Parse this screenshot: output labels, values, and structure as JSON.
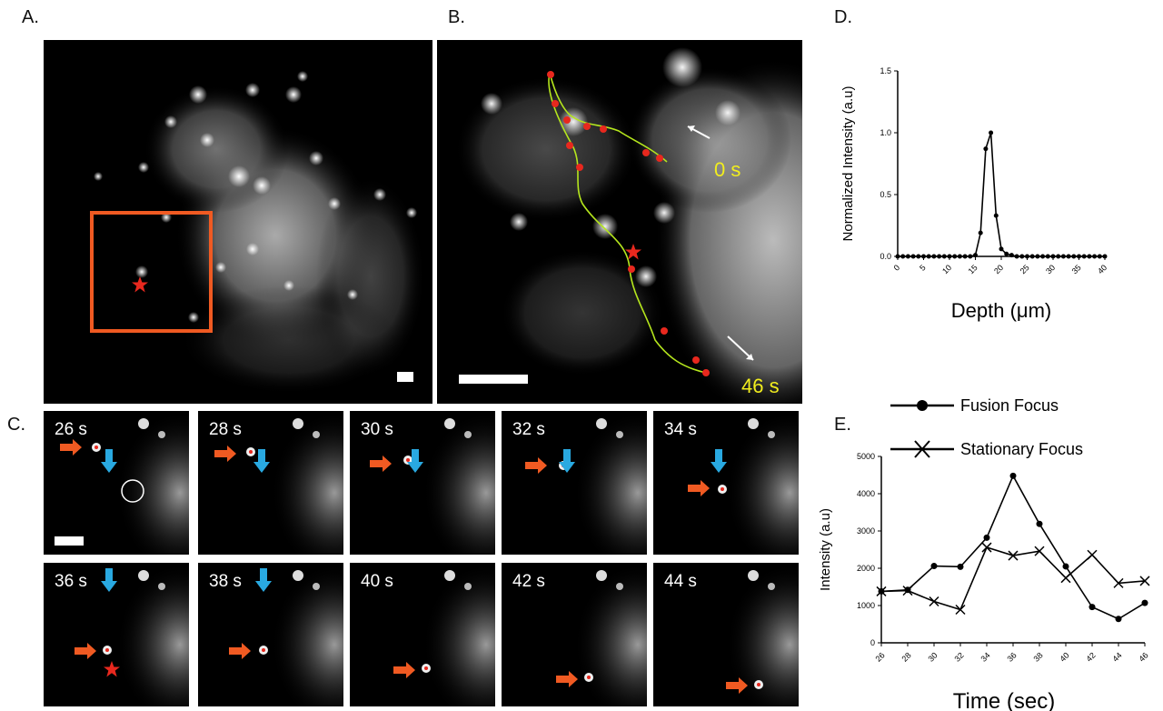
{
  "panel_labels": {
    "a": "A.",
    "b": "B.",
    "c": "C.",
    "d": "D.",
    "e": "E."
  },
  "panel_b": {
    "t_start": "0 s",
    "t_end": "46 s"
  },
  "panel_c": {
    "row1": [
      "26 s",
      "28 s",
      "30 s",
      "32 s",
      "34 s"
    ],
    "row2": [
      "36 s",
      "38 s",
      "40 s",
      "42 s",
      "44 s"
    ]
  },
  "colors": {
    "orange": "#f05a22",
    "blue": "#29a9e1",
    "track": "#b5e61d",
    "label_yellow": "#f2ee1e",
    "red": "#e8281e"
  },
  "chart_data": [
    {
      "type": "line",
      "ylabel": "Normalized Intensity (a.u)",
      "xlabel": "Depth (μm)",
      "xlim": [
        0,
        40
      ],
      "ylim": [
        0,
        1.5
      ],
      "xticks": [
        0,
        5,
        10,
        15,
        20,
        25,
        30,
        35,
        40
      ],
      "yticks": [
        "0.0",
        "0.5",
        "1.0",
        "1.5"
      ],
      "x": [
        0,
        1,
        2,
        3,
        4,
        5,
        6,
        7,
        8,
        9,
        10,
        11,
        12,
        13,
        14,
        15,
        16,
        17,
        18,
        19,
        20,
        21,
        22,
        23,
        24,
        25,
        26,
        27,
        28,
        29,
        30,
        31,
        32,
        33,
        34,
        35,
        36,
        37,
        38,
        39,
        40
      ],
      "values": [
        0,
        0,
        0,
        0,
        0,
        0,
        0,
        0,
        0,
        0,
        0,
        0,
        0,
        0,
        0,
        0.01,
        0.19,
        0.87,
        1.0,
        0.33,
        0.06,
        0.02,
        0.01,
        0,
        0,
        0,
        0,
        0,
        0,
        0,
        0,
        0,
        0,
        0,
        0,
        0,
        0,
        0,
        0,
        0,
        0
      ]
    },
    {
      "type": "line",
      "ylabel": "Intensity (a.u)",
      "xlabel": "Time (sec)",
      "xlim": [
        26,
        46
      ],
      "ylim": [
        0,
        5000
      ],
      "categories": [
        "26",
        "28",
        "30",
        "32",
        "34",
        "36",
        "38",
        "40",
        "42",
        "44",
        "46"
      ],
      "yticks": [
        "0",
        "1000",
        "2000",
        "3000",
        "4000",
        "5000"
      ],
      "series": [
        {
          "name": "Fusion Focus",
          "marker": "circle",
          "values": [
            1380,
            1420,
            2060,
            2040,
            2820,
            4480,
            3190,
            2050,
            960,
            640,
            1070
          ]
        },
        {
          "name": "Stationary Focus",
          "marker": "x",
          "values": [
            1380,
            1400,
            1110,
            890,
            2560,
            2340,
            2460,
            1740,
            2360,
            1600,
            1660
          ]
        }
      ]
    }
  ]
}
